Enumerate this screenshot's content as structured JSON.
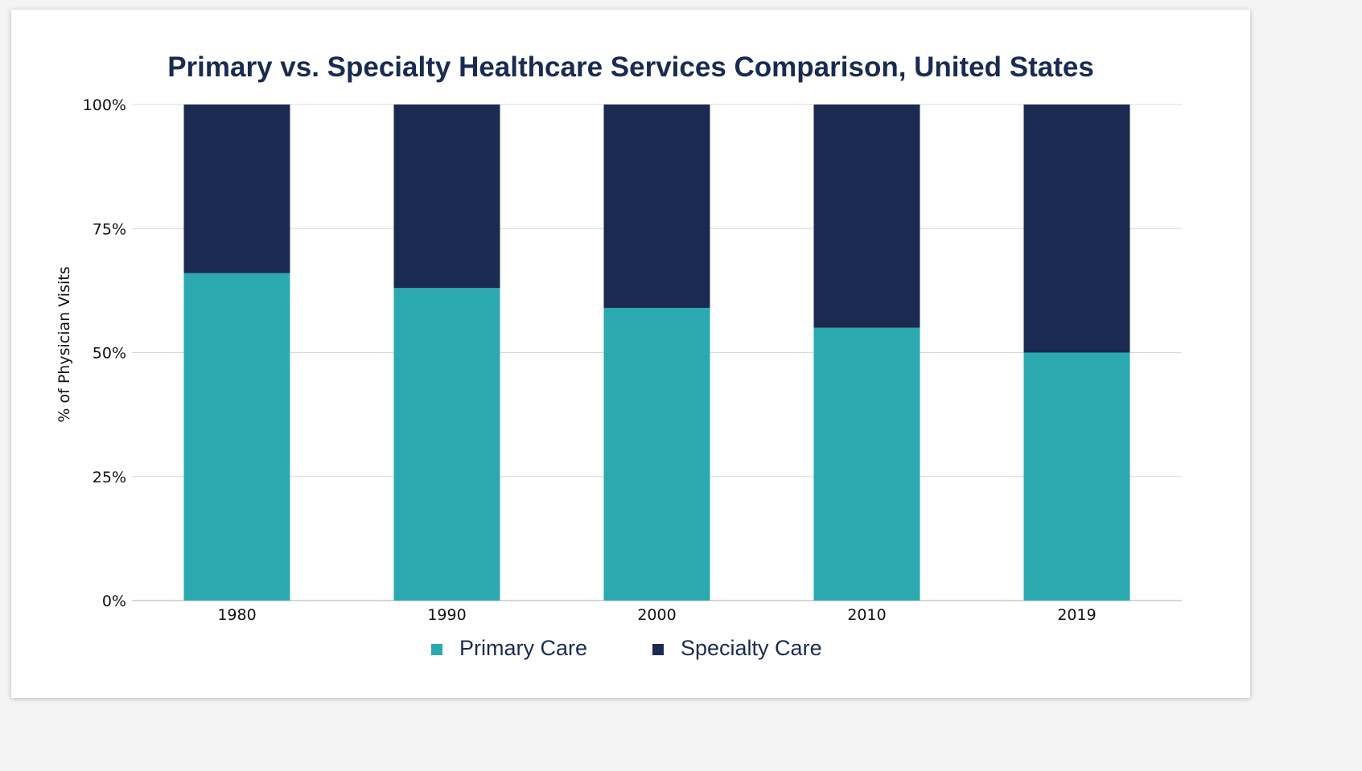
{
  "chart_data": {
    "type": "bar",
    "stacked": true,
    "title": "Primary vs. Specialty Healthcare Services Comparison, United States",
    "xlabel": "",
    "ylabel": "% of Physician Visits",
    "categories": [
      "1980",
      "1990",
      "2000",
      "2010",
      "2019"
    ],
    "series": [
      {
        "name": "Primary Care",
        "color": "#2ba9b1",
        "values": [
          66,
          63,
          59,
          55,
          50
        ]
      },
      {
        "name": "Specialty Care",
        "color": "#1a2a50",
        "values": [
          34,
          37,
          41,
          45,
          50
        ]
      }
    ],
    "ylim": [
      0,
      100
    ],
    "yticks": [
      0,
      25,
      50,
      75,
      100
    ],
    "ytick_labels": [
      "0%",
      "25%",
      "50%",
      "75%",
      "100%"
    ],
    "grid": true,
    "legend_position": "bottom-center"
  }
}
